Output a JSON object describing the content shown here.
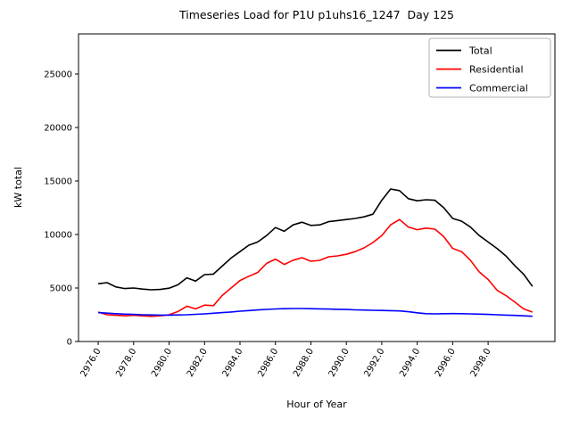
{
  "chart_data": {
    "type": "line",
    "title": "Timeseries Load for P1U p1uhs16_1247  Day 125",
    "xlabel": "Hour of Year",
    "ylabel": "kW total",
    "xlim": [
      2974.89,
      3001.77
    ],
    "ylim": [
      0,
      28750
    ],
    "grid": false,
    "legend_position": "upper right",
    "xticks": [
      2976,
      2978,
      2980,
      2982,
      2984,
      2986,
      2988,
      2990,
      2992,
      2994,
      2996,
      2998
    ],
    "xtick_labels": [
      "2976.0",
      "2978.0",
      "2980.0",
      "2982.0",
      "2984.0",
      "2986.0",
      "2988.0",
      "2990.0",
      "2992.0",
      "2994.0",
      "2996.0",
      "2998.0"
    ],
    "yticks": [
      0,
      5000,
      10000,
      15000,
      20000,
      25000
    ],
    "ytick_labels": [
      "0",
      "5000",
      "10000",
      "15000",
      "20000",
      "25000"
    ],
    "x": [
      2976.0,
      2976.5,
      2977.0,
      2977.5,
      2978.0,
      2978.5,
      2979.0,
      2979.5,
      2980.0,
      2980.5,
      2981.0,
      2981.5,
      2982.0,
      2982.5,
      2983.0,
      2983.5,
      2984.0,
      2984.5,
      2985.0,
      2985.5,
      2986.0,
      2986.5,
      2987.0,
      2987.5,
      2988.0,
      2988.5,
      2989.0,
      2989.5,
      2990.0,
      2990.5,
      2991.0,
      2991.5,
      2992.0,
      2992.5,
      2993.0,
      2993.5,
      2994.0,
      2994.5,
      2995.0,
      2995.5,
      2996.0,
      2996.5,
      2997.0,
      2997.5,
      2998.0,
      2998.5,
      2999.0,
      2999.5,
      3000.0,
      3000.5
    ],
    "series": [
      {
        "name": "Total",
        "color": "#000000",
        "values": [
          5400,
          5500,
          5100,
          4950,
          5000,
          4900,
          4830,
          4870,
          4980,
          5300,
          5950,
          5650,
          6250,
          6300,
          7050,
          7800,
          8400,
          9000,
          9300,
          9900,
          10650,
          10300,
          10900,
          11150,
          10850,
          10900,
          11200,
          11300,
          11400,
          11500,
          11650,
          11900,
          13200,
          14250,
          14100,
          13350,
          13150,
          13250,
          13200,
          12500,
          11500,
          11250,
          10700,
          9900,
          9300,
          8700,
          8000,
          7100,
          6300,
          5150
        ]
      },
      {
        "name": "Residential",
        "color": "#ff0000",
        "values": [
          2750,
          2500,
          2450,
          2400,
          2450,
          2400,
          2350,
          2400,
          2500,
          2800,
          3300,
          3050,
          3400,
          3350,
          4300,
          5000,
          5700,
          6100,
          6450,
          7300,
          7700,
          7200,
          7600,
          7830,
          7500,
          7580,
          7920,
          8000,
          8150,
          8400,
          8750,
          9250,
          9900,
          10900,
          11400,
          10700,
          10450,
          10600,
          10500,
          9800,
          8700,
          8400,
          7600,
          6500,
          5800,
          4800,
          4300,
          3700,
          3050,
          2750
        ]
      },
      {
        "name": "Commercial",
        "color": "#0000ff",
        "values": [
          2700,
          2650,
          2600,
          2560,
          2530,
          2500,
          2480,
          2470,
          2470,
          2480,
          2500,
          2540,
          2580,
          2640,
          2700,
          2760,
          2830,
          2890,
          2950,
          3000,
          3040,
          3070,
          3080,
          3080,
          3070,
          3050,
          3030,
          3010,
          2990,
          2960,
          2940,
          2920,
          2900,
          2880,
          2860,
          2780,
          2680,
          2600,
          2580,
          2600,
          2610,
          2600,
          2580,
          2560,
          2530,
          2500,
          2470,
          2440,
          2400,
          2360
        ]
      }
    ]
  }
}
